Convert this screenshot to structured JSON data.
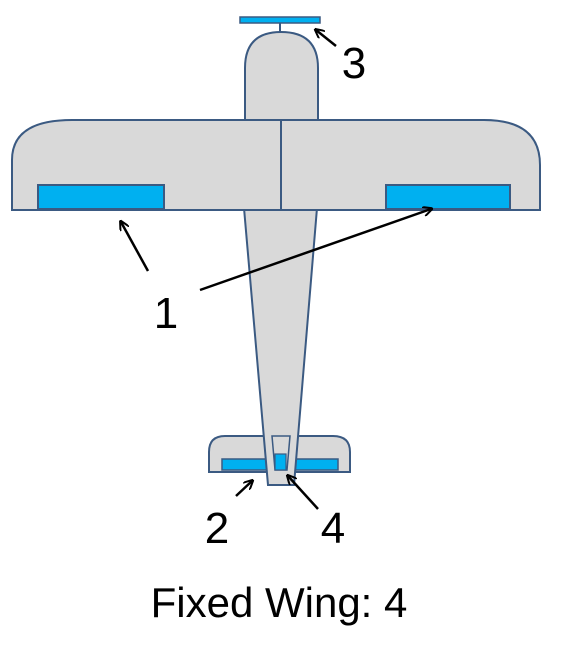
{
  "labels": {
    "ailerons": "1",
    "elevator": "2",
    "propeller": "3",
    "rudder": "4"
  },
  "caption": "Fixed Wing: 4",
  "colors": {
    "airframe_fill": "#d9d9d9",
    "outline": "#3b5a82",
    "control_surface": "#00b0f0",
    "arrow": "#000000",
    "background": "#ffffff"
  }
}
